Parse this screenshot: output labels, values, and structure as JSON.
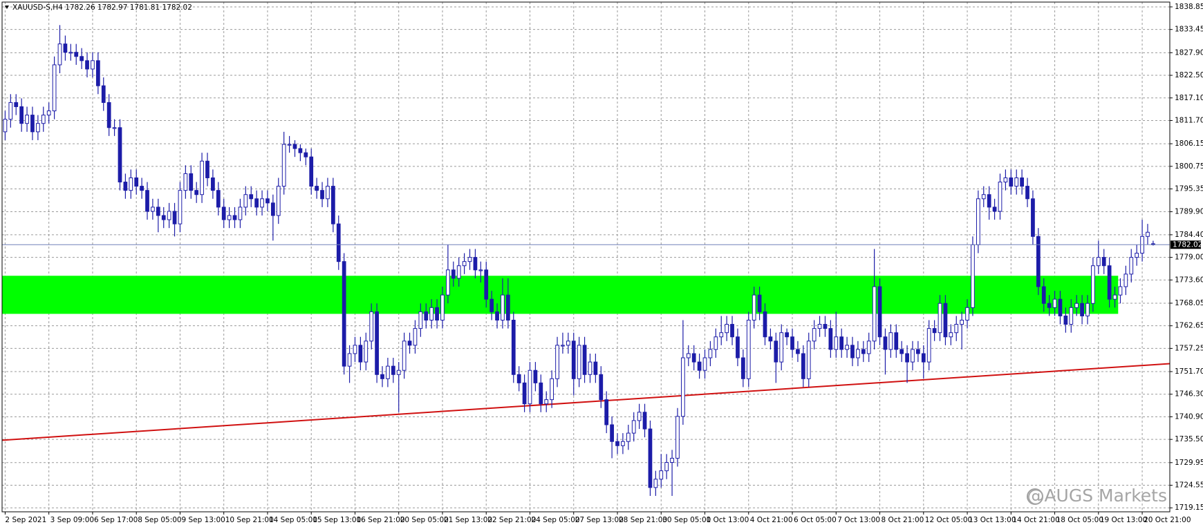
{
  "chart_data": {
    "type": "candlestick",
    "title": "XAUUSD-S,H4  1782.26 1782.97 1781.81 1782.02",
    "watermark": "@AUGS Markets",
    "categories": [
      "2 Sep 2021",
      null,
      null,
      null,
      null,
      null,
      null,
      null,
      "3 Sep 09:00",
      null,
      null,
      null,
      null,
      null,
      null,
      null,
      "6 Sep 17:00",
      null,
      null,
      null,
      null,
      null,
      null,
      null,
      "8 Sep 05:00",
      null,
      null,
      null,
      null,
      null,
      null,
      null,
      "9 Sep 13:00",
      null,
      null,
      null,
      null,
      null,
      null,
      null,
      "10 Sep 21:00",
      null,
      null,
      null,
      null,
      null,
      null,
      null,
      "14 Sep 05:00",
      null,
      null,
      null,
      null,
      null,
      null,
      null,
      "15 Sep 13:00",
      null,
      null,
      null,
      null,
      null,
      null,
      null,
      "16 Sep 21:00",
      null,
      null,
      null,
      null,
      null,
      null,
      null,
      "20 Sep 05:00",
      null,
      null,
      null,
      null,
      null,
      null,
      null,
      "21 Sep 13:00",
      null,
      null,
      null,
      null,
      null,
      null,
      null,
      "22 Sep 21:00",
      null,
      null,
      null,
      null,
      null,
      null,
      null,
      "24 Sep 05:00",
      null,
      null,
      null,
      null,
      null,
      null,
      null,
      "27 Sep 13:00",
      null,
      null,
      null,
      null,
      null,
      null,
      null,
      "28 Sep 21:00",
      null,
      null,
      null,
      null,
      null,
      null,
      null,
      "30 Sep 05:00",
      null,
      null,
      null,
      null,
      null,
      null,
      null,
      "1 Oct 13:00",
      null,
      null,
      null,
      null,
      null,
      null,
      null,
      "4 Oct 21:00",
      null,
      null,
      null,
      null,
      null,
      null,
      null,
      "6 Oct 05:00",
      null,
      null,
      null,
      null,
      null,
      null,
      null,
      "7 Oct 13:00",
      null,
      null,
      null,
      null,
      null,
      null,
      null,
      "8 Oct 21:00",
      null,
      null,
      null,
      null,
      null,
      null,
      null,
      "12 Oct 05:00",
      null,
      null,
      null,
      null,
      null,
      null,
      null,
      "13 Oct 13:00",
      null,
      null,
      null,
      null,
      null,
      null,
      null,
      "14 Oct 21:00",
      null,
      null,
      null,
      null,
      null,
      null,
      null,
      "18 Oct 05:00",
      null,
      null,
      null,
      null,
      null,
      null,
      null,
      "19 Oct 13:00",
      null,
      null,
      null,
      null,
      null,
      null,
      null,
      "20 Oct 21:00",
      null,
      null
    ],
    "open": [
      1809,
      1812,
      1816,
      1815,
      1811,
      1813,
      1809,
      1811,
      1813,
      1814,
      1825,
      1830,
      1828,
      1828,
      1827,
      1826,
      1824,
      1826,
      1820,
      1816,
      1810,
      1810,
      1797,
      1795,
      1798,
      1796,
      1795,
      1790,
      1791,
      1789,
      1788,
      1790,
      1787,
      1795,
      1799,
      1795,
      1794,
      1802,
      1798,
      1795,
      1791,
      1788,
      1789,
      1788,
      1791,
      1794,
      1793,
      1791,
      1793,
      1792,
      1789,
      1796,
      1806,
      1806,
      1805,
      1804,
      1803,
      1796,
      1795,
      1793,
      1796,
      1787,
      1778,
      1753,
      1756,
      1758,
      1754,
      1759,
      1766,
      1751,
      1750,
      1753,
      1751,
      1752,
      1759,
      1758,
      1762,
      1766,
      1764,
      1767,
      1764,
      1770,
      1776,
      1774,
      1777,
      1778,
      1779,
      1776,
      1776,
      1769,
      1766,
      1764,
      1770,
      1764,
      1751,
      1749,
      1744,
      1752,
      1749,
      1744,
      1745,
      1750,
      1758,
      1758,
      1759,
      1750,
      1758,
      1751,
      1754,
      1751,
      1745,
      1739,
      1735,
      1734,
      1735,
      1737,
      1740,
      1742,
      1738,
      1724,
      1726,
      1728,
      1730,
      1731,
      1741,
      1755,
      1756,
      1754,
      1752,
      1755,
      1757,
      1760,
      1761,
      1763,
      1760,
      1755,
      1750,
      1764,
      1770,
      1766,
      1760,
      1759,
      1754,
      1761,
      1760,
      1757,
      1756,
      1750,
      1759,
      1762,
      1763,
      1762,
      1757,
      1760,
      1757,
      1758,
      1755,
      1757,
      1756,
      1759,
      1772,
      1760,
      1757,
      1761,
      1757,
      1756,
      1754,
      1757,
      1756,
      1754,
      1762,
      1761,
      1768,
      1760,
      1761,
      1763,
      1764,
      1767,
      1782,
      1793,
      1794,
      1791,
      1790,
      1797,
      1798,
      1796,
      1798,
      1796,
      1793,
      1784,
      1772,
      1768,
      1767,
      1769,
      1765,
      1763,
      1767,
      1768,
      1765,
      1768,
      1777,
      1779,
      1777,
      1769,
      1770,
      1772,
      1775,
      1779,
      1780,
      1784,
      1782.26
    ],
    "high": [
      1814,
      1818,
      1818,
      1817,
      1815,
      1815,
      1813,
      1815,
      1816,
      1827,
      1834.5,
      1832,
      1830,
      1830,
      1829,
      1828,
      1828,
      1828,
      1822,
      1818,
      1812,
      1812,
      1799,
      1800,
      1800,
      1798,
      1797,
      1793,
      1793,
      1791,
      1792,
      1792,
      1797,
      1801,
      1801,
      1797,
      1804,
      1804,
      1800,
      1797,
      1793,
      1791,
      1791,
      1793,
      1796,
      1796,
      1795,
      1795,
      1795,
      1794,
      1798,
      1809,
      1808,
      1807,
      1806,
      1805,
      1805,
      1798,
      1797,
      1798,
      1798,
      1789,
      1780,
      1758,
      1760,
      1760,
      1761,
      1768,
      1768,
      1753,
      1755,
      1755,
      1754,
      1761,
      1761,
      1764,
      1768,
      1768,
      1769,
      1769,
      1772,
      1782,
      1778,
      1779,
      1780,
      1781,
      1781,
      1778,
      1778,
      1771,
      1768,
      1774,
      1774,
      1766,
      1753,
      1751,
      1754,
      1754,
      1751,
      1747,
      1752,
      1760,
      1761,
      1761,
      1761,
      1760,
      1760,
      1756,
      1756,
      1753,
      1747,
      1741,
      1737,
      1737,
      1739,
      1742,
      1744,
      1744,
      1740,
      1728,
      1732,
      1732,
      1733,
      1743,
      1764,
      1758,
      1758,
      1756,
      1757,
      1759,
      1762,
      1765,
      1765,
      1765,
      1762,
      1757,
      1766,
      1772,
      1772,
      1768,
      1762,
      1761,
      1763,
      1762,
      1762,
      1759,
      1758,
      1761,
      1764,
      1765,
      1765,
      1764,
      1766,
      1762,
      1760,
      1760,
      1759,
      1759,
      1761,
      1781,
      1774,
      1762,
      1763,
      1763,
      1759,
      1758,
      1759,
      1759,
      1758,
      1764,
      1764,
      1770,
      1770,
      1763,
      1765,
      1766,
      1769,
      1784,
      1795,
      1796,
      1796,
      1793,
      1799,
      1800,
      1800,
      1800,
      1800,
      1798,
      1795,
      1786,
      1774,
      1770,
      1771,
      1771,
      1767,
      1769,
      1770,
      1770,
      1770,
      1779,
      1783,
      1781,
      1779,
      1772,
      1774,
      1777,
      1781,
      1782,
      1788,
      1787,
      1782.97
    ],
    "low": [
      1807,
      1810,
      1813,
      1809,
      1809,
      1807,
      1807,
      1809,
      1811,
      1812,
      1823,
      1826,
      1826,
      1825,
      1824,
      1822,
      1822,
      1818,
      1814,
      1808,
      1808,
      1795,
      1793,
      1793,
      1794,
      1793,
      1788,
      1788,
      1785,
      1786,
      1786,
      1784,
      1785,
      1793,
      1793,
      1792,
      1792,
      1796,
      1793,
      1789,
      1786,
      1786,
      1786,
      1786,
      1789,
      1791,
      1789,
      1789,
      1790,
      1783,
      1787,
      1794,
      1804,
      1803,
      1802,
      1801,
      1794,
      1793,
      1791,
      1791,
      1785,
      1776,
      1751,
      1749,
      1754,
      1752,
      1752,
      1757,
      1749,
      1748,
      1748,
      1749,
      1742,
      1750,
      1756,
      1756,
      1760,
      1762,
      1762,
      1762,
      1762,
      1768,
      1772,
      1772,
      1775,
      1776,
      1774,
      1773,
      1767,
      1764,
      1762,
      1762,
      1762,
      1749,
      1747,
      1742,
      1742,
      1747,
      1742,
      1742,
      1743,
      1748,
      1756,
      1756,
      1746,
      1748,
      1749,
      1749,
      1749,
      1743,
      1737,
      1731,
      1732,
      1732,
      1733,
      1735,
      1738,
      1736,
      1722,
      1722,
      1724,
      1726,
      1722,
      1729,
      1739,
      1753,
      1752,
      1750,
      1750,
      1753,
      1755,
      1758,
      1759,
      1758,
      1753,
      1748,
      1748,
      1762,
      1764,
      1758,
      1757,
      1749,
      1752,
      1758,
      1755,
      1754,
      1748,
      1748,
      1757,
      1760,
      1760,
      1755,
      1755,
      1755,
      1755,
      1753,
      1753,
      1754,
      1754,
      1757,
      1758,
      1751,
      1755,
      1755,
      1754,
      1749,
      1752,
      1754,
      1750,
      1752,
      1759,
      1759,
      1758,
      1758,
      1759,
      1757,
      1762,
      1765,
      1780,
      1791,
      1788,
      1788,
      1788,
      1795,
      1794,
      1794,
      1794,
      1791,
      1782,
      1770,
      1766,
      1765,
      1765,
      1763,
      1761,
      1761,
      1765,
      1763,
      1763,
      1766,
      1775,
      1775,
      1767,
      1767,
      1768,
      1770,
      1773,
      1777,
      1778,
      1782,
      1781.81
    ],
    "close": [
      1812,
      1816,
      1815,
      1811,
      1813,
      1809,
      1811,
      1813,
      1814,
      1825,
      1830,
      1828,
      1828,
      1827,
      1826,
      1824,
      1826,
      1820,
      1816,
      1810,
      1810,
      1797,
      1795,
      1798,
      1796,
      1795,
      1790,
      1791,
      1789,
      1788,
      1790,
      1787,
      1795,
      1799,
      1795,
      1794,
      1802,
      1798,
      1795,
      1791,
      1788,
      1789,
      1788,
      1791,
      1794,
      1793,
      1791,
      1793,
      1792,
      1789,
      1796,
      1806,
      1806,
      1805,
      1804,
      1803,
      1796,
      1795,
      1793,
      1796,
      1787,
      1778,
      1753,
      1756,
      1758,
      1754,
      1759,
      1766,
      1751,
      1750,
      1753,
      1751,
      1752,
      1759,
      1758,
      1762,
      1766,
      1764,
      1767,
      1764,
      1770,
      1776,
      1774,
      1777,
      1778,
      1779,
      1776,
      1776,
      1769,
      1766,
      1764,
      1770,
      1764,
      1751,
      1749,
      1744,
      1752,
      1749,
      1744,
      1745,
      1750,
      1758,
      1758,
      1759,
      1750,
      1758,
      1751,
      1754,
      1751,
      1745,
      1739,
      1735,
      1734,
      1735,
      1737,
      1740,
      1742,
      1738,
      1724,
      1726,
      1728,
      1730,
      1731,
      1741,
      1755,
      1756,
      1754,
      1752,
      1755,
      1757,
      1760,
      1761,
      1763,
      1760,
      1755,
      1750,
      1764,
      1770,
      1766,
      1760,
      1759,
      1754,
      1761,
      1760,
      1757,
      1756,
      1750,
      1759,
      1762,
      1763,
      1762,
      1757,
      1760,
      1757,
      1758,
      1755,
      1757,
      1756,
      1759,
      1772,
      1760,
      1757,
      1761,
      1757,
      1756,
      1754,
      1757,
      1756,
      1754,
      1762,
      1761,
      1768,
      1760,
      1761,
      1763,
      1764,
      1767,
      1782,
      1793,
      1794,
      1791,
      1790,
      1797,
      1798,
      1796,
      1798,
      1796,
      1793,
      1784,
      1772,
      1768,
      1767,
      1769,
      1765,
      1763,
      1767,
      1768,
      1765,
      1768,
      1777,
      1779,
      1777,
      1769,
      1770,
      1772,
      1775,
      1779,
      1780,
      1784,
      1785,
      1782.02
    ],
    "up_color": "#ffffff",
    "down_color": "#1c1ca8",
    "wick_color": "#1c1ca8",
    "zone": {
      "x": [
        -0.56,
        203.6
      ],
      "y": [
        1765.5,
        1774.6
      ],
      "color": "#00ff00"
    },
    "trendline": {
      "x": [
        -0.56,
        213.05
      ],
      "y": [
        1735.3,
        1753.6
      ],
      "color": "#d01010"
    },
    "xlim": [
      -0.56,
      213.05
    ],
    "ylim": [
      1718.2,
      1840.0
    ],
    "yticks": [
      1838.85,
      1833.45,
      {
        "value": 1827.9,
        "label": "1827.90"
      },
      {
        "value": 1822.5,
        "label": "1822.50"
      },
      {
        "value": 1817.1,
        "label": "1817.10"
      },
      {
        "value": 1811.7,
        "label": "1811.70"
      },
      1806.15,
      1800.75,
      1795.35,
      {
        "value": 1789.9,
        "label": "1789.90"
      },
      {
        "value": 1784.4,
        "label": "1784.40"
      },
      {
        "value": 1779,
        "label": "1779.00"
      },
      {
        "value": 1773.6,
        "label": "1773.60"
      },
      1768.05,
      1762.65,
      1757.25,
      {
        "value": 1751.7,
        "label": "1751.70"
      },
      {
        "value": 1746.3,
        "label": "1746.30"
      },
      {
        "value": 1740.9,
        "label": "1740.90"
      },
      {
        "value": 1735.5,
        "label": "1735.50"
      },
      1729.95,
      1724.55,
      1719.15
    ],
    "grid": true
  }
}
